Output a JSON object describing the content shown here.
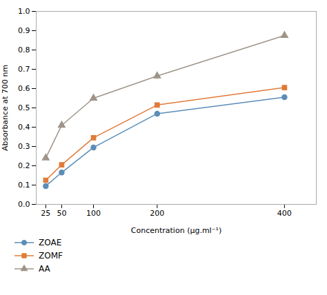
{
  "chart_data": {
    "type": "line",
    "xlabel": "Concentration (μg.ml⁻¹)",
    "ylabel": "Absorbance at 700 nm",
    "x": [
      25,
      50,
      100,
      200,
      400
    ],
    "series": [
      {
        "name": "ZOAE",
        "color": "#5B8DB8",
        "marker": "circle",
        "values": [
          0.095,
          0.165,
          0.295,
          0.47,
          0.555
        ],
        "errors": [
          0.01,
          0.01,
          0.01,
          0.013,
          0.012
        ]
      },
      {
        "name": "ZOMF",
        "color": "#E07B39",
        "marker": "square",
        "values": [
          0.125,
          0.205,
          0.345,
          0.515,
          0.605
        ],
        "errors": [
          0.008,
          0.01,
          0.01,
          0.012,
          0.012
        ]
      },
      {
        "name": "AA",
        "color": "#9E9488",
        "marker": "triangle",
        "values": [
          0.24,
          0.41,
          0.55,
          0.665,
          0.875
        ],
        "errors": [
          0.008,
          0.013,
          0.012,
          0.018,
          0.01
        ]
      }
    ],
    "xlim": [
      10,
      450
    ],
    "xticks": [
      25,
      50,
      100,
      200,
      400
    ],
    "ylim": [
      0,
      1.0
    ],
    "yticks": [
      {
        "value": 0,
        "label": "0.0"
      },
      0.1,
      0.2,
      0.3,
      0.4,
      0.5,
      0.6,
      0.7,
      0.8,
      0.9,
      {
        "value": 1,
        "label": "1.0"
      }
    ],
    "grid": false,
    "legend": "below"
  }
}
